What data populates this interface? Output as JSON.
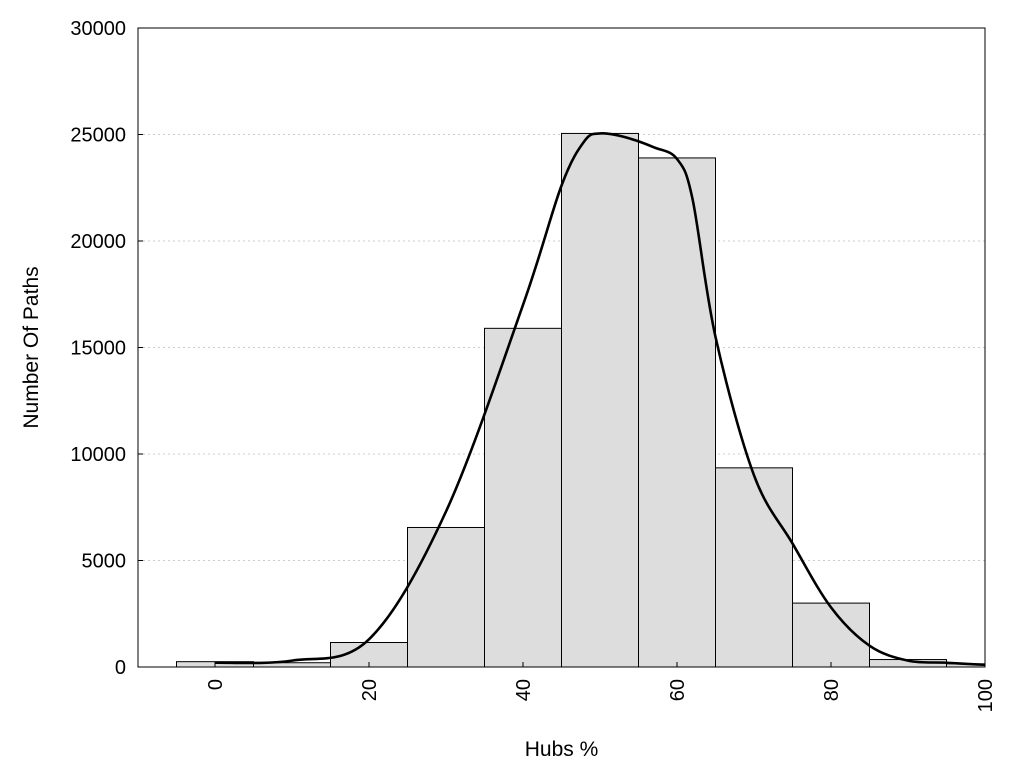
{
  "chart_data": {
    "type": "bar",
    "title": "",
    "xlabel": "Hubs %",
    "ylabel": "Number Of Paths",
    "xlim": [
      -10,
      100
    ],
    "ylim": [
      0,
      30000
    ],
    "x_ticks": [
      0,
      20,
      40,
      60,
      80,
      100
    ],
    "y_ticks": [
      0,
      5000,
      10000,
      15000,
      20000,
      25000,
      30000
    ],
    "grid": "horizontal dotted",
    "legend": "none",
    "bin_width": 10,
    "bar_color": "#dddddd",
    "bar_edge_color": "#000000",
    "bins": [
      {
        "center": 0,
        "value": 250
      },
      {
        "center": 10,
        "value": 200
      },
      {
        "center": 20,
        "value": 1150
      },
      {
        "center": 30,
        "value": 6550
      },
      {
        "center": 40,
        "value": 15900
      },
      {
        "center": 50,
        "value": 25050
      },
      {
        "center": 60,
        "value": 23900
      },
      {
        "center": 70,
        "value": 9350
      },
      {
        "center": 80,
        "value": 3000
      },
      {
        "center": 90,
        "value": 350
      },
      {
        "center": 100,
        "value": 150
      }
    ],
    "smooth_curve": {
      "color": "#000000",
      "x": [
        0,
        10,
        20,
        30,
        40,
        45,
        48,
        50,
        53,
        57,
        60,
        62,
        65,
        70,
        75,
        80,
        85,
        90,
        95,
        100
      ],
      "y": [
        200,
        300,
        1300,
        7300,
        17000,
        22600,
        24700,
        25050,
        24900,
        24400,
        23850,
        22000,
        15500,
        9000,
        5800,
        2800,
        1000,
        300,
        200,
        100
      ]
    }
  }
}
